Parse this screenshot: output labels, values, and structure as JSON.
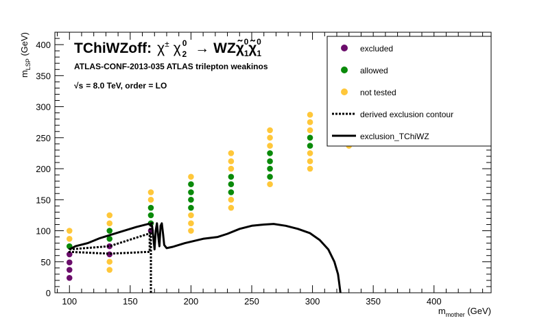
{
  "chart_data": {
    "type": "scatter",
    "title_parts": {
      "name": "TChiWZoff:",
      "c1": "χ",
      "pm": "±",
      "c2": "χ",
      "sub2": "2",
      "sup0": "0",
      "arrow": "→",
      "wz": "WZ",
      "chi": "χ̃",
      "one": "1",
      "zero": "0"
    },
    "subtitle": "ATLAS-CONF-2013-035  ATLAS trilepton weakinos",
    "energy_label": {
      "sqrt": "√s",
      "rest": "=  8.0 TeV, order =  LO"
    },
    "xlabel": {
      "main": "m",
      "sub": "mother",
      "unit": " (GeV)"
    },
    "ylabel": {
      "main": "m",
      "sub": "LSP",
      "unit": " (GeV)"
    },
    "xlim": [
      88,
      447
    ],
    "ylim": [
      0,
      420
    ],
    "xticks": [
      100,
      150,
      200,
      250,
      300,
      350,
      400
    ],
    "yticks": [
      0,
      50,
      100,
      150,
      200,
      250,
      300,
      350,
      400
    ],
    "grid": false,
    "legend_position": "top-right",
    "legend": [
      {
        "label": "excluded",
        "kind": "marker",
        "color": "#6b0d6b"
      },
      {
        "label": "allowed",
        "kind": "marker",
        "color": "#0a8a0a"
      },
      {
        "label": "not tested",
        "kind": "marker",
        "color": "#ffc73a"
      },
      {
        "label": "derived exclusion contour",
        "kind": "dashed"
      },
      {
        "label": "exclusion_TChiWZ",
        "kind": "solid"
      }
    ],
    "colors": {
      "excluded": "#6b0d6b",
      "allowed": "#0a8a0a",
      "not_tested": "#ffc73a"
    },
    "series": [
      {
        "category": "excluded",
        "points": [
          [
            100,
            24
          ],
          [
            100,
            37
          ],
          [
            100,
            49
          ],
          [
            100,
            62
          ],
          [
            133,
            62
          ],
          [
            133,
            75
          ],
          [
            167,
            100
          ]
        ]
      },
      {
        "category": "allowed",
        "points": [
          [
            100,
            75
          ],
          [
            133,
            87
          ],
          [
            133,
            100
          ],
          [
            167,
            112
          ],
          [
            167,
            125
          ],
          [
            167,
            137
          ],
          [
            200,
            137
          ],
          [
            200,
            150
          ],
          [
            200,
            162
          ],
          [
            200,
            175
          ],
          [
            233,
            162
          ],
          [
            233,
            175
          ],
          [
            233,
            187
          ],
          [
            265,
            187
          ],
          [
            265,
            200
          ],
          [
            265,
            212
          ],
          [
            265,
            225
          ],
          [
            298,
            237
          ],
          [
            298,
            250
          ]
        ]
      },
      {
        "category": "not_tested",
        "points": [
          [
            100,
            87
          ],
          [
            100,
            100
          ],
          [
            133,
            37
          ],
          [
            133,
            50
          ],
          [
            133,
            112
          ],
          [
            133,
            125
          ],
          [
            167,
            150
          ],
          [
            167,
            162
          ],
          [
            200,
            100
          ],
          [
            200,
            112
          ],
          [
            200,
            125
          ],
          [
            200,
            187
          ],
          [
            233,
            137
          ],
          [
            233,
            150
          ],
          [
            233,
            200
          ],
          [
            233,
            212
          ],
          [
            233,
            225
          ],
          [
            265,
            175
          ],
          [
            265,
            237
          ],
          [
            265,
            250
          ],
          [
            265,
            262
          ],
          [
            298,
            200
          ],
          [
            298,
            212
          ],
          [
            298,
            225
          ],
          [
            298,
            262
          ],
          [
            298,
            275
          ],
          [
            298,
            287
          ],
          [
            330,
            237
          ]
        ]
      }
    ],
    "derived_contour": [
      [
        167,
        0
      ],
      [
        167,
        95
      ],
      [
        165,
        95
      ],
      [
        133,
        75
      ],
      [
        100,
        70
      ],
      [
        100,
        66
      ],
      [
        133,
        63
      ],
      [
        166,
        66
      ],
      [
        166,
        100
      ],
      [
        167,
        108
      ],
      [
        168,
        112
      ],
      [
        165,
        112
      ]
    ],
    "exclusion_TChiWZ": [
      [
        100,
        70
      ],
      [
        105,
        75
      ],
      [
        115,
        80
      ],
      [
        125,
        88
      ],
      [
        140,
        97
      ],
      [
        155,
        106
      ],
      [
        165,
        111
      ],
      [
        168,
        108
      ],
      [
        169,
        90
      ],
      [
        170,
        70
      ],
      [
        171,
        100
      ],
      [
        172,
        112
      ],
      [
        173,
        92
      ],
      [
        174,
        75
      ],
      [
        175,
        108
      ],
      [
        176,
        112
      ],
      [
        177,
        95
      ],
      [
        178,
        77
      ],
      [
        180,
        72
      ],
      [
        185,
        74
      ],
      [
        195,
        80
      ],
      [
        210,
        87
      ],
      [
        222,
        90
      ],
      [
        230,
        95
      ],
      [
        240,
        103
      ],
      [
        250,
        108
      ],
      [
        260,
        110
      ],
      [
        268,
        111
      ],
      [
        278,
        108
      ],
      [
        288,
        103
      ],
      [
        298,
        96
      ],
      [
        306,
        85
      ],
      [
        313,
        70
      ],
      [
        318,
        50
      ],
      [
        321,
        30
      ],
      [
        322,
        15
      ],
      [
        323,
        0
      ]
    ]
  }
}
